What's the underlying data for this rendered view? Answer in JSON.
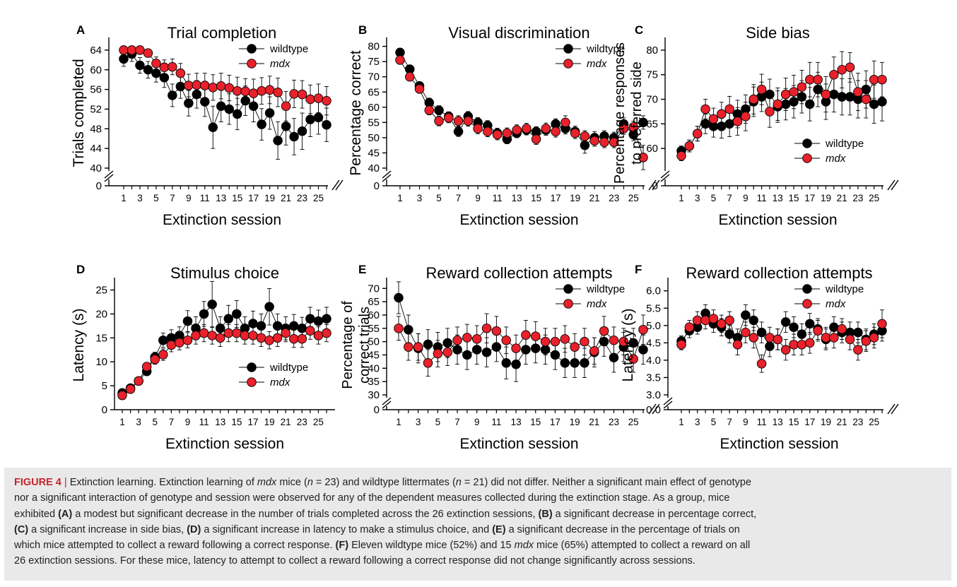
{
  "legend_labels": [
    "wildtype",
    "mdx"
  ],
  "colors": {
    "wildtype": "#000000",
    "mdx": "#e8212b"
  },
  "chart_data": [
    {
      "panel": "A",
      "type": "line",
      "title": "Trial completion",
      "xlabel": "Extinction session",
      "ylabel": [
        "Trials completed"
      ],
      "xticks": [
        1,
        3,
        5,
        7,
        9,
        11,
        13,
        15,
        17,
        19,
        21,
        23,
        25
      ],
      "yticks": [
        40,
        44,
        48,
        52,
        56,
        60,
        64
      ],
      "ylim": [
        40,
        66
      ],
      "ybreak": true,
      "zero_label": "0",
      "legend": "top-right",
      "x": [
        1,
        2,
        3,
        4,
        5,
        6,
        7,
        8,
        9,
        10,
        11,
        12,
        13,
        14,
        15,
        16,
        17,
        18,
        19,
        20,
        21,
        22,
        23,
        24,
        25,
        26
      ],
      "series": [
        {
          "name": "wildtype",
          "values": [
            62.2,
            63.2,
            60.9,
            60.0,
            59.3,
            58.4,
            54.8,
            56.6,
            53.2,
            55.0,
            53.5,
            48.3,
            52.6,
            52.0,
            51.0,
            53.7,
            52.6,
            48.9,
            51.2,
            45.6,
            48.5,
            46.4,
            47.5,
            49.9,
            50.3,
            48.8
          ],
          "errors": [
            1.5,
            1.5,
            1.6,
            1.7,
            1.8,
            2.0,
            2.3,
            2.4,
            2.6,
            2.8,
            3.0,
            4.3,
            3.2,
            3.1,
            3.2,
            3.0,
            3.2,
            3.2,
            3.3,
            3.8,
            3.8,
            3.7,
            3.7,
            3.5,
            3.4,
            3.4
          ]
        },
        {
          "name": "mdx",
          "values": [
            64.0,
            64.0,
            64.0,
            63.4,
            61.3,
            60.5,
            60.6,
            59.3,
            56.8,
            56.9,
            56.8,
            56.4,
            56.7,
            56.3,
            55.7,
            55.6,
            55.2,
            55.7,
            55.9,
            55.4,
            52.6,
            55.1,
            55.0,
            54.0,
            54.2,
            53.7
          ],
          "errors": [
            0.3,
            0.4,
            0.5,
            0.8,
            1.3,
            1.5,
            1.6,
            2.0,
            2.3,
            2.4,
            2.5,
            2.6,
            2.6,
            2.6,
            2.8,
            2.6,
            2.9,
            2.7,
            2.8,
            2.9,
            3.0,
            2.8,
            2.8,
            2.9,
            2.9,
            2.9
          ]
        }
      ]
    },
    {
      "panel": "B",
      "type": "line",
      "title": "Visual discrimination",
      "xlabel": "Extinction session",
      "ylabel": [
        "Percentage correct"
      ],
      "xticks": [
        1,
        3,
        5,
        7,
        9,
        11,
        13,
        15,
        17,
        19,
        21,
        23,
        25
      ],
      "yticks": [
        40,
        45,
        50,
        55,
        60,
        65,
        70,
        75,
        80
      ],
      "ylim": [
        40,
        82
      ],
      "ybreak": true,
      "zero_label": "0",
      "legend": "top-right",
      "x": [
        1,
        2,
        3,
        4,
        5,
        6,
        7,
        8,
        9,
        10,
        11,
        12,
        13,
        14,
        15,
        16,
        17,
        18,
        19,
        20,
        21,
        22,
        23,
        24,
        25,
        26
      ],
      "series": [
        {
          "name": "wildtype",
          "values": [
            78.0,
            72.5,
            67.0,
            61.5,
            59.0,
            57.0,
            52.0,
            57.0,
            55.0,
            54.0,
            51.5,
            49.5,
            51.5,
            52.5,
            52.0,
            52.5,
            54.5,
            53.0,
            52.0,
            47.5,
            50.0,
            50.5,
            50.0,
            54.5,
            51.0,
            55.0
          ],
          "errors": [
            1.0,
            1.2,
            1.3,
            1.5,
            1.5,
            1.5,
            1.6,
            1.6,
            1.6,
            1.6,
            1.6,
            1.5,
            1.5,
            1.6,
            1.6,
            1.7,
            1.7,
            1.8,
            1.8,
            2.6,
            2.0,
            1.8,
            1.8,
            2.0,
            2.0,
            2.2
          ]
        },
        {
          "name": "mdx",
          "values": [
            75.5,
            70.0,
            66.0,
            59.0,
            55.5,
            56.5,
            55.5,
            55.5,
            53.0,
            52.0,
            51.0,
            51.5,
            52.5,
            53.0,
            49.5,
            53.0,
            52.0,
            55.0,
            51.5,
            50.5,
            49.0,
            48.5,
            48.5,
            53.0,
            53.5,
            43.5
          ],
          "errors": [
            1.0,
            1.2,
            1.3,
            1.5,
            1.6,
            1.6,
            1.7,
            1.7,
            1.7,
            1.7,
            1.7,
            1.7,
            1.7,
            1.7,
            1.7,
            1.8,
            1.8,
            2.2,
            1.8,
            1.8,
            1.8,
            1.8,
            1.8,
            1.9,
            1.9,
            4.0
          ]
        }
      ]
    },
    {
      "panel": "C",
      "type": "line",
      "title": "Side bias",
      "xlabel": "Extinction session",
      "ylabel": [
        "Percentage responses",
        "to preferred side"
      ],
      "xticks": [
        1,
        3,
        5,
        7,
        9,
        11,
        13,
        15,
        17,
        19,
        21,
        23,
        25
      ],
      "yticks": [
        60,
        65,
        70,
        75,
        80
      ],
      "ylim": [
        56,
        82
      ],
      "ybreak": true,
      "zero_label": "0",
      "legend": "bottom-right",
      "x": [
        1,
        2,
        3,
        4,
        5,
        6,
        7,
        8,
        9,
        10,
        11,
        12,
        13,
        14,
        15,
        16,
        17,
        18,
        19,
        20,
        21,
        22,
        23,
        24,
        25,
        26
      ],
      "series": [
        {
          "name": "wildtype",
          "values": [
            59.5,
            60.5,
            63.0,
            65.0,
            64.5,
            64.5,
            65.0,
            67.0,
            68.0,
            69.5,
            70.5,
            71.0,
            68.5,
            69.0,
            69.5,
            70.5,
            69.0,
            72.0,
            69.5,
            71.0,
            70.5,
            70.5,
            70.0,
            72.0,
            69.0,
            69.5
          ],
          "errors": [
            1.0,
            1.2,
            1.5,
            2.0,
            2.2,
            2.4,
            2.6,
            2.8,
            2.9,
            3.0,
            3.0,
            3.1,
            3.2,
            3.2,
            3.3,
            3.3,
            3.4,
            3.5,
            3.6,
            3.6,
            3.7,
            3.7,
            3.8,
            3.8,
            3.9,
            3.9
          ]
        },
        {
          "name": "mdx",
          "values": [
            58.5,
            60.5,
            63.0,
            68.0,
            66.0,
            67.0,
            68.0,
            65.5,
            66.5,
            70.0,
            72.0,
            67.5,
            69.0,
            71.0,
            71.5,
            72.5,
            74.0,
            74.0,
            71.0,
            75.0,
            76.0,
            76.5,
            71.5,
            70.0,
            74.0,
            74.0
          ],
          "errors": [
            1.0,
            1.2,
            1.5,
            2.0,
            2.2,
            2.4,
            2.6,
            2.8,
            2.9,
            3.0,
            3.1,
            3.2,
            3.3,
            3.3,
            3.4,
            3.4,
            3.5,
            3.5,
            3.6,
            3.6,
            3.7,
            3.0,
            3.8,
            3.8,
            3.8,
            3.5
          ]
        }
      ]
    },
    {
      "panel": "D",
      "type": "line",
      "title": "Stimulus choice",
      "xlabel": "Extinction session",
      "ylabel": [
        "Latency (s)"
      ],
      "xticks": [
        1,
        3,
        5,
        7,
        9,
        11,
        13,
        15,
        17,
        19,
        21,
        23,
        25
      ],
      "yticks": [
        0,
        5,
        10,
        15,
        20,
        25
      ],
      "ylim": [
        0,
        27
      ],
      "ybreak": false,
      "legend": "bottom-right",
      "x": [
        1,
        2,
        3,
        4,
        5,
        6,
        7,
        8,
        9,
        10,
        11,
        12,
        13,
        14,
        15,
        16,
        17,
        18,
        19,
        20,
        21,
        22,
        23,
        24,
        25,
        26
      ],
      "series": [
        {
          "name": "wildtype",
          "values": [
            3.5,
            4.5,
            6.0,
            8.0,
            11.0,
            14.5,
            15.0,
            15.5,
            18.5,
            17.0,
            20.0,
            22.0,
            17.0,
            19.0,
            20.0,
            17.0,
            18.0,
            17.5,
            21.5,
            17.5,
            17.0,
            17.5,
            17.0,
            19.0,
            18.5,
            19.0
          ],
          "errors": [
            0.5,
            0.5,
            0.6,
            0.8,
            1.0,
            1.5,
            1.7,
            1.8,
            2.2,
            2.4,
            2.6,
            4.8,
            2.4,
            2.8,
            2.8,
            2.4,
            2.6,
            2.5,
            3.8,
            2.5,
            2.4,
            2.4,
            2.3,
            2.4,
            2.3,
            2.4
          ]
        },
        {
          "name": "mdx",
          "values": [
            3.0,
            4.3,
            6.0,
            9.0,
            10.5,
            11.5,
            13.5,
            14.0,
            14.5,
            15.5,
            16.0,
            15.5,
            15.0,
            16.0,
            16.0,
            15.5,
            15.5,
            15.0,
            14.5,
            15.0,
            16.0,
            14.8,
            14.8,
            16.5,
            15.5,
            16.0
          ],
          "errors": [
            0.5,
            0.5,
            0.6,
            0.8,
            1.0,
            1.2,
            1.4,
            1.5,
            1.6,
            1.8,
            1.8,
            1.8,
            1.8,
            1.8,
            1.8,
            1.8,
            1.8,
            1.8,
            1.8,
            1.8,
            1.8,
            1.8,
            1.8,
            1.8,
            1.8,
            1.8
          ]
        }
      ]
    },
    {
      "panel": "E",
      "type": "line",
      "title": "Reward collection attempts",
      "xlabel": "Extinction session",
      "ylabel": [
        "Percentage of",
        "correct trials"
      ],
      "xticks": [
        1,
        3,
        5,
        7,
        9,
        11,
        13,
        15,
        17,
        19,
        21,
        23,
        25
      ],
      "yticks": [
        30,
        35,
        40,
        45,
        50,
        55,
        60,
        65,
        70
      ],
      "ylim": [
        30,
        73
      ],
      "ybreak": true,
      "zero_label": "0",
      "legend": "top-right",
      "x": [
        1,
        2,
        3,
        4,
        5,
        6,
        7,
        8,
        9,
        10,
        11,
        12,
        13,
        14,
        15,
        16,
        17,
        18,
        19,
        20,
        21,
        22,
        23,
        24,
        25,
        26
      ],
      "series": [
        {
          "name": "wildtype",
          "values": [
            66.5,
            54.5,
            47.5,
            49.0,
            48.0,
            49.5,
            47.0,
            45.0,
            47.0,
            46.0,
            48.0,
            42.0,
            41.5,
            47.0,
            47.5,
            47.0,
            45.0,
            42.0,
            42.0,
            42.0,
            46.0,
            50.0,
            44.0,
            48.0,
            49.5,
            47.0
          ],
          "errors": [
            6.0,
            5.5,
            5.5,
            5.5,
            5.5,
            5.5,
            5.5,
            5.5,
            5.5,
            5.5,
            5.5,
            6.0,
            6.5,
            5.5,
            5.5,
            5.5,
            5.5,
            5.5,
            5.5,
            5.5,
            5.5,
            5.5,
            5.5,
            5.5,
            5.5,
            5.5
          ]
        },
        {
          "name": "mdx",
          "values": [
            55.0,
            48.0,
            48.0,
            42.0,
            45.5,
            46.0,
            50.5,
            51.5,
            51.0,
            55.0,
            54.0,
            50.5,
            47.5,
            52.5,
            52.0,
            50.0,
            50.0,
            51.0,
            48.0,
            50.0,
            46.5,
            54.0,
            50.5,
            50.0,
            43.5,
            54.5
          ],
          "errors": [
            4.5,
            5.0,
            5.0,
            5.0,
            5.0,
            5.0,
            5.0,
            5.0,
            5.0,
            5.5,
            5.5,
            5.0,
            5.0,
            5.5,
            5.5,
            5.0,
            5.0,
            5.0,
            5.0,
            5.0,
            5.0,
            5.5,
            5.0,
            5.0,
            5.0,
            5.5
          ]
        }
      ]
    },
    {
      "panel": "F",
      "type": "line",
      "title": "Reward collection attempts",
      "xlabel": "Extinction session",
      "ylabel": [
        "Latency (s)"
      ],
      "xticks": [
        1,
        3,
        5,
        7,
        9,
        11,
        13,
        15,
        17,
        19,
        21,
        23,
        25
      ],
      "yticks": [
        3.0,
        3.5,
        4.0,
        4.5,
        5.0,
        5.5,
        6.0
      ],
      "ylim": [
        3.0,
        6.3
      ],
      "ybreak": true,
      "zero_label": "0.0",
      "legend": "top-right",
      "x": [
        1,
        2,
        3,
        4,
        5,
        6,
        7,
        8,
        9,
        10,
        11,
        12,
        13,
        14,
        15,
        16,
        17,
        18,
        19,
        20,
        21,
        22,
        23,
        24,
        25,
        26
      ],
      "series": [
        {
          "name": "wildtype",
          "values": [
            4.55,
            4.85,
            4.95,
            5.35,
            5.05,
            4.95,
            4.75,
            4.65,
            5.3,
            5.15,
            4.8,
            4.4,
            4.6,
            5.1,
            4.95,
            4.75,
            5.05,
            4.9,
            4.6,
            4.95,
            4.8,
            4.8,
            4.8,
            4.6,
            4.75,
            4.85
          ],
          "errors": [
            0.15,
            0.2,
            0.2,
            0.25,
            0.25,
            0.25,
            0.25,
            0.25,
            0.3,
            0.3,
            0.3,
            0.3,
            0.3,
            0.3,
            0.3,
            0.3,
            0.3,
            0.3,
            0.3,
            0.3,
            0.3,
            0.3,
            0.3,
            0.3,
            0.3,
            0.3
          ]
        },
        {
          "name": "mdx",
          "values": [
            4.45,
            4.95,
            5.15,
            5.15,
            5.2,
            5.05,
            5.15,
            4.45,
            4.8,
            4.65,
            3.9,
            4.65,
            4.6,
            4.3,
            4.45,
            4.45,
            4.5,
            4.85,
            4.65,
            4.65,
            4.9,
            4.6,
            4.3,
            4.55,
            4.65,
            5.05
          ],
          "errors": [
            0.15,
            0.2,
            0.25,
            0.25,
            0.25,
            0.25,
            0.25,
            0.3,
            0.3,
            0.3,
            0.25,
            0.3,
            0.3,
            0.3,
            0.3,
            0.3,
            0.3,
            0.3,
            0.3,
            0.3,
            0.3,
            0.3,
            0.3,
            0.3,
            0.3,
            0.4
          ]
        }
      ]
    }
  ],
  "caption": {
    "figure_label": "FIGURE 4",
    "separator": "|",
    "lines": [
      " Extinction learning. Extinction learning of <i>mdx</i> mice (<i>n</i> = 23) and wildtype littermates (<i>n</i> = 21) did not differ. Neither a significant main effect of genotype",
      "nor a significant interaction of genotype and session were observed for any of the dependent measures collected during the extinction stage. As a group, mice",
      "exhibited <b>(A)</b> a modest but significant decrease in the number of trials completed across the 26 extinction sessions, <b>(B)</b> a significant decrease in percentage correct,",
      "<b>(C)</b> a significant increase in side bias, <b>(D)</b> a significant increase in latency to make a stimulus choice, and <b>(E)</b> a significant decrease in the percentage of trials on",
      "which mice attempted to collect a reward following a correct response. <b>(F)</b> Eleven wildtype mice (52%) and 15 <i>mdx</i> mice (65%) attempted to collect a reward on all",
      "26 extinction sessions. For these mice, latency to attempt to collect a reward following a correct response did not change significantly across sessions."
    ]
  }
}
